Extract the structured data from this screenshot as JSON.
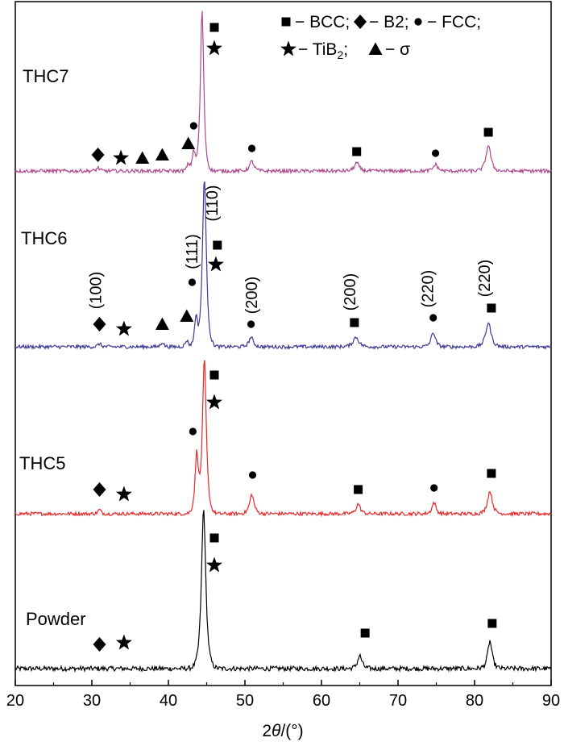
{
  "chart_data": {
    "type": "line",
    "title": "",
    "xlabel_prefix": "2",
    "xlabel_theta": "θ",
    "xlabel_suffix": "/(°)",
    "ylabel": "",
    "xlim": [
      20,
      90
    ],
    "xticks": [
      20,
      30,
      40,
      50,
      60,
      70,
      80,
      90
    ],
    "series_order_top_to_bottom": [
      "THC7",
      "THC6",
      "THC5",
      "Powder"
    ],
    "series": [
      {
        "name": "Powder",
        "color": "#000000",
        "baseline": 20,
        "noise": 3,
        "peaks": [
          {
            "x": 44.6,
            "h": 198,
            "w": 0.45
          },
          {
            "x": 65.0,
            "h": 16,
            "w": 0.45
          },
          {
            "x": 82.0,
            "h": 34,
            "w": 0.45
          }
        ],
        "markers": [
          {
            "symbol": "square",
            "x": 46.0,
            "dy": 162
          },
          {
            "symbol": "star",
            "x": 46.0,
            "dy": 128
          },
          {
            "symbol": "diamond",
            "x": 31.0,
            "dy": 30
          },
          {
            "symbol": "star",
            "x": 34.2,
            "dy": 32
          },
          {
            "symbol": "square",
            "x": 65.7,
            "dy": 44
          },
          {
            "symbol": "square",
            "x": 82.3,
            "dy": 56
          }
        ]
      },
      {
        "name": "THC5",
        "color": "#e8282a",
        "baseline": 22,
        "noise": 2.2,
        "peaks": [
          {
            "x": 43.7,
            "h": 72,
            "w": 0.35
          },
          {
            "x": 44.7,
            "h": 190,
            "w": 0.4
          },
          {
            "x": 50.9,
            "h": 24,
            "w": 0.45
          },
          {
            "x": 64.8,
            "h": 12,
            "w": 0.45
          },
          {
            "x": 74.7,
            "h": 14,
            "w": 0.4
          },
          {
            "x": 82.0,
            "h": 28,
            "w": 0.5
          },
          {
            "x": 31.0,
            "h": 5,
            "w": 0.3
          }
        ],
        "markers": [
          {
            "symbol": "square",
            "x": 46.0,
            "dy": 172
          },
          {
            "symbol": "star",
            "x": 46.0,
            "dy": 138
          },
          {
            "symbol": "circle",
            "x": 43.2,
            "dy": 102
          },
          {
            "symbol": "circle",
            "x": 51.0,
            "dy": 48
          },
          {
            "symbol": "diamond",
            "x": 31.0,
            "dy": 30
          },
          {
            "symbol": "star",
            "x": 34.2,
            "dy": 24
          },
          {
            "symbol": "square",
            "x": 64.8,
            "dy": 30
          },
          {
            "symbol": "circle",
            "x": 74.7,
            "dy": 32
          },
          {
            "symbol": "square",
            "x": 82.2,
            "dy": 50
          }
        ]
      },
      {
        "name": "THC6",
        "color": "#3d3996",
        "baseline": 22,
        "noise": 2.2,
        "peaks": [
          {
            "x": 43.6,
            "h": 36,
            "w": 0.3
          },
          {
            "x": 44.7,
            "h": 210,
            "w": 0.4
          },
          {
            "x": 50.8,
            "h": 12,
            "w": 0.45
          },
          {
            "x": 64.5,
            "h": 12,
            "w": 0.6
          },
          {
            "x": 74.6,
            "h": 18,
            "w": 0.45
          },
          {
            "x": 81.8,
            "h": 30,
            "w": 0.55
          },
          {
            "x": 31.0,
            "h": 4,
            "w": 0.3
          },
          {
            "x": 39.2,
            "h": 6,
            "w": 0.3
          },
          {
            "x": 42.4,
            "h": 8,
            "w": 0.3
          }
        ],
        "markers": [
          {
            "symbol": "square",
            "x": 46.4,
            "dy": 126
          },
          {
            "symbol": "star",
            "x": 46.2,
            "dy": 102
          },
          {
            "symbol": "circle",
            "x": 43.1,
            "dy": 80
          },
          {
            "symbol": "circle",
            "x": 50.8,
            "dy": 28
          },
          {
            "symbol": "diamond",
            "x": 31.0,
            "dy": 28
          },
          {
            "symbol": "star",
            "x": 34.2,
            "dy": 22
          },
          {
            "symbol": "triangle",
            "x": 39.2,
            "dy": 28
          },
          {
            "symbol": "triangle",
            "x": 42.4,
            "dy": 38
          },
          {
            "symbol": "square",
            "x": 64.3,
            "dy": 30
          },
          {
            "symbol": "circle",
            "x": 74.6,
            "dy": 36
          },
          {
            "symbol": "square",
            "x": 82.2,
            "dy": 48
          }
        ],
        "labels": [
          {
            "text": "(100)",
            "x": 31.2,
            "dy": 70
          },
          {
            "text": "(111)",
            "x": 43.8,
            "dy": 118
          },
          {
            "text": "(110)",
            "x": 46.4,
            "dy": 178
          },
          {
            "text": "(200)",
            "x": 51.6,
            "dy": 64
          },
          {
            "text": "(200)",
            "x": 64.4,
            "dy": 68
          },
          {
            "text": "(220)",
            "x": 74.6,
            "dy": 72
          },
          {
            "text": "(220)",
            "x": 82.0,
            "dy": 85
          }
        ]
      },
      {
        "name": "THC7",
        "color": "#b0468f",
        "baseline": 22,
        "noise": 2.2,
        "peaks": [
          {
            "x": 43.3,
            "h": 24,
            "w": 0.3
          },
          {
            "x": 44.4,
            "h": 200,
            "w": 0.35
          },
          {
            "x": 50.9,
            "h": 12,
            "w": 0.45
          },
          {
            "x": 64.6,
            "h": 10,
            "w": 0.5
          },
          {
            "x": 74.9,
            "h": 8,
            "w": 0.45
          },
          {
            "x": 81.8,
            "h": 32,
            "w": 0.5
          },
          {
            "x": 42.6,
            "h": 8,
            "w": 0.3
          },
          {
            "x": 30.8,
            "h": 4,
            "w": 0.3
          }
        ],
        "markers": [
          {
            "symbol": "square",
            "x": 46.0,
            "dy": 178
          },
          {
            "symbol": "star",
            "x": 46.0,
            "dy": 152
          },
          {
            "symbol": "circle",
            "x": 43.3,
            "dy": 56
          },
          {
            "symbol": "triangle",
            "x": 42.6,
            "dy": 34
          },
          {
            "symbol": "diamond",
            "x": 30.8,
            "dy": 20
          },
          {
            "symbol": "star",
            "x": 33.8,
            "dy": 16
          },
          {
            "symbol": "triangle",
            "x": 36.6,
            "dy": 16
          },
          {
            "symbol": "triangle",
            "x": 39.2,
            "dy": 20
          },
          {
            "symbol": "circle",
            "x": 50.9,
            "dy": 28
          },
          {
            "symbol": "square",
            "x": 64.6,
            "dy": 24
          },
          {
            "symbol": "circle",
            "x": 74.9,
            "dy": 22
          },
          {
            "symbol": "square",
            "x": 81.8,
            "dy": 48
          }
        ]
      }
    ],
    "legend": {
      "placement": "top-right",
      "row1": [
        {
          "symbol": "square",
          "text": "− BCC;"
        },
        {
          "symbol": "diamond",
          "text": "− B2;"
        },
        {
          "symbol": "circle",
          "text": "− FCC;"
        }
      ],
      "row2": [
        {
          "symbol": "star",
          "text": "− TiB",
          "sub": "2",
          "after": ";"
        },
        {
          "symbol": "triangle",
          "text": "− σ"
        }
      ]
    }
  }
}
